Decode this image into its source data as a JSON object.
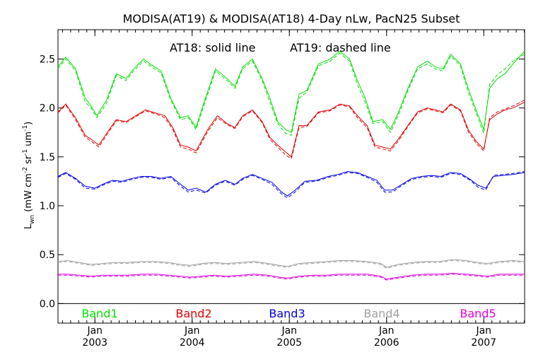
{
  "chart_data": {
    "type": "line",
    "title": "MODISA(AT19) & MODISA(AT18) 4-Day nLw, PacN25 Subset",
    "ylabel": {
      "main": "L",
      "sub": "wn",
      "units_a": " (mW cm",
      "sup1": "-2",
      "units_b": " sr",
      "sup2": "-1",
      "units_c": " um",
      "sup3": "-1",
      "units_d": ")"
    },
    "annotation_at18": "AT18: solid line",
    "annotation_at19": "AT19: dashed line",
    "ylim": [
      -0.2,
      2.8
    ],
    "xlim": [
      2002.62,
      2007.42
    ],
    "y_ticks": [
      {
        "value": 0.0,
        "label": "0.0"
      },
      {
        "value": 0.5,
        "label": "0.5"
      },
      {
        "value": 1.0,
        "label": "1.0"
      },
      {
        "value": 1.5,
        "label": "1.5"
      },
      {
        "value": 2.0,
        "label": "2.0"
      },
      {
        "value": 2.5,
        "label": "2.5"
      }
    ],
    "x_ticks": [
      {
        "value": 2003.0,
        "month": "Jan",
        "year": "2003"
      },
      {
        "value": 2004.0,
        "month": "Jan",
        "year": "2004"
      },
      {
        "value": 2005.0,
        "month": "Jan",
        "year": "2005"
      },
      {
        "value": 2006.0,
        "month": "Jan",
        "year": "2006"
      },
      {
        "value": 2007.0,
        "month": "Jan",
        "year": "2007"
      }
    ],
    "zero_line": 0.0,
    "series": [
      {
        "name": "Band1",
        "color": "#00e000",
        "x": [
          2002.62,
          2002.7,
          2002.8,
          2002.9,
          2002.96,
          2003.02,
          2003.12,
          2003.22,
          2003.32,
          2003.4,
          2003.5,
          2003.58,
          2003.68,
          2003.78,
          2003.88,
          2003.96,
          2004.04,
          2004.12,
          2004.24,
          2004.36,
          2004.44,
          2004.52,
          2004.62,
          2004.72,
          2004.8,
          2004.88,
          2004.96,
          2005.02,
          2005.1,
          2005.18,
          2005.3,
          2005.42,
          2005.52,
          2005.62,
          2005.7,
          2005.78,
          2005.86,
          2005.96,
          2006.04,
          2006.12,
          2006.22,
          2006.32,
          2006.42,
          2006.5,
          2006.58,
          2006.66,
          2006.76,
          2006.84,
          2006.92,
          2007.0,
          2007.06,
          2007.14,
          2007.22,
          2007.3,
          2007.42
        ],
        "at18": [
          2.42,
          2.52,
          2.4,
          2.1,
          2.02,
          1.92,
          2.08,
          2.35,
          2.3,
          2.4,
          2.5,
          2.44,
          2.38,
          2.1,
          1.9,
          1.92,
          1.8,
          2.05,
          2.4,
          2.3,
          2.22,
          2.42,
          2.5,
          2.3,
          2.1,
          1.86,
          1.78,
          1.75,
          2.14,
          2.18,
          2.45,
          2.5,
          2.58,
          2.5,
          2.28,
          2.1,
          1.86,
          1.88,
          1.78,
          1.95,
          2.2,
          2.42,
          2.48,
          2.42,
          2.4,
          2.55,
          2.45,
          2.2,
          1.98,
          1.78,
          2.2,
          2.3,
          2.35,
          2.45,
          2.58
        ],
        "at19": [
          2.4,
          2.5,
          2.38,
          2.06,
          2.0,
          1.9,
          2.05,
          2.33,
          2.28,
          2.38,
          2.48,
          2.42,
          2.36,
          2.08,
          1.88,
          1.9,
          1.78,
          2.02,
          2.38,
          2.28,
          2.2,
          2.4,
          2.48,
          2.28,
          2.06,
          1.84,
          1.74,
          1.72,
          2.1,
          2.16,
          2.43,
          2.48,
          2.56,
          2.48,
          2.24,
          2.06,
          1.84,
          1.86,
          1.75,
          1.92,
          2.18,
          2.4,
          2.45,
          2.4,
          2.38,
          2.53,
          2.43,
          2.16,
          1.95,
          1.74,
          2.24,
          2.34,
          2.4,
          2.48,
          2.55
        ]
      },
      {
        "name": "Band2",
        "color": "#e00000",
        "x": [
          2002.62,
          2002.7,
          2002.8,
          2002.9,
          2002.96,
          2003.04,
          2003.12,
          2003.22,
          2003.32,
          2003.42,
          2003.52,
          2003.62,
          2003.72,
          2003.8,
          2003.88,
          2003.96,
          2004.04,
          2004.16,
          2004.26,
          2004.36,
          2004.44,
          2004.52,
          2004.62,
          2004.72,
          2004.8,
          2004.88,
          2004.96,
          2005.02,
          2005.1,
          2005.18,
          2005.3,
          2005.42,
          2005.52,
          2005.62,
          2005.7,
          2005.8,
          2005.88,
          2005.96,
          2006.04,
          2006.12,
          2006.22,
          2006.32,
          2006.42,
          2006.5,
          2006.58,
          2006.66,
          2006.76,
          2006.84,
          2006.92,
          2007.0,
          2007.06,
          2007.14,
          2007.22,
          2007.3,
          2007.42
        ],
        "at18": [
          1.96,
          2.04,
          1.9,
          1.72,
          1.68,
          1.62,
          1.74,
          1.88,
          1.86,
          1.92,
          1.98,
          1.95,
          1.92,
          1.8,
          1.62,
          1.6,
          1.56,
          1.78,
          1.92,
          1.84,
          1.8,
          1.92,
          1.98,
          1.86,
          1.7,
          1.62,
          1.55,
          1.5,
          1.82,
          1.82,
          1.96,
          1.98,
          2.04,
          2.02,
          1.92,
          1.82,
          1.62,
          1.6,
          1.58,
          1.68,
          1.82,
          1.96,
          2.0,
          1.98,
          1.96,
          2.04,
          1.98,
          1.78,
          1.66,
          1.58,
          1.88,
          1.94,
          1.98,
          2.0,
          2.06
        ],
        "at19": [
          1.95,
          2.03,
          1.88,
          1.7,
          1.66,
          1.6,
          1.72,
          1.87,
          1.85,
          1.91,
          1.97,
          1.94,
          1.9,
          1.78,
          1.6,
          1.58,
          1.54,
          1.76,
          1.9,
          1.83,
          1.79,
          1.91,
          1.97,
          1.85,
          1.68,
          1.6,
          1.52,
          1.48,
          1.8,
          1.81,
          1.95,
          1.97,
          2.03,
          2.01,
          1.9,
          1.8,
          1.6,
          1.58,
          1.56,
          1.66,
          1.81,
          1.95,
          1.99,
          1.97,
          1.95,
          2.03,
          1.97,
          1.76,
          1.64,
          1.56,
          1.9,
          1.96,
          1.99,
          2.02,
          2.08
        ]
      },
      {
        "name": "Band3",
        "color": "#0000e0",
        "x": [
          2002.62,
          2002.7,
          2002.8,
          2002.9,
          2003.0,
          2003.08,
          2003.18,
          2003.28,
          2003.38,
          2003.48,
          2003.58,
          2003.68,
          2003.78,
          2003.88,
          2003.96,
          2004.04,
          2004.14,
          2004.24,
          2004.34,
          2004.44,
          2004.52,
          2004.62,
          2004.72,
          2004.82,
          2004.92,
          2004.98,
          2005.06,
          2005.16,
          2005.28,
          2005.4,
          2005.5,
          2005.6,
          2005.7,
          2005.8,
          2005.9,
          2005.98,
          2006.06,
          2006.16,
          2006.26,
          2006.36,
          2006.46,
          2006.56,
          2006.66,
          2006.76,
          2006.86,
          2006.94,
          2007.02,
          2007.1,
          2007.2,
          2007.3,
          2007.42
        ],
        "at18": [
          1.3,
          1.34,
          1.28,
          1.2,
          1.18,
          1.22,
          1.26,
          1.25,
          1.28,
          1.3,
          1.3,
          1.28,
          1.3,
          1.22,
          1.16,
          1.18,
          1.14,
          1.22,
          1.26,
          1.22,
          1.28,
          1.32,
          1.28,
          1.24,
          1.14,
          1.1,
          1.16,
          1.25,
          1.26,
          1.3,
          1.32,
          1.35,
          1.34,
          1.3,
          1.26,
          1.16,
          1.16,
          1.22,
          1.28,
          1.3,
          1.31,
          1.3,
          1.34,
          1.33,
          1.27,
          1.21,
          1.18,
          1.3,
          1.31,
          1.32,
          1.34
        ],
        "at19": [
          1.29,
          1.33,
          1.27,
          1.18,
          1.17,
          1.21,
          1.25,
          1.24,
          1.27,
          1.29,
          1.29,
          1.27,
          1.29,
          1.2,
          1.14,
          1.16,
          1.13,
          1.21,
          1.25,
          1.21,
          1.27,
          1.31,
          1.27,
          1.22,
          1.12,
          1.08,
          1.14,
          1.24,
          1.25,
          1.29,
          1.31,
          1.34,
          1.33,
          1.29,
          1.24,
          1.14,
          1.14,
          1.21,
          1.27,
          1.29,
          1.3,
          1.29,
          1.33,
          1.32,
          1.26,
          1.19,
          1.16,
          1.31,
          1.32,
          1.33,
          1.35
        ]
      },
      {
        "name": "Band4",
        "color": "#a0a0a0",
        "x": [
          2002.62,
          2002.72,
          2002.84,
          2002.96,
          2003.08,
          2003.2,
          2003.34,
          2003.48,
          2003.62,
          2003.76,
          2003.88,
          2003.98,
          2004.1,
          2004.22,
          2004.36,
          2004.5,
          2004.64,
          2004.78,
          2004.9,
          2004.98,
          2005.1,
          2005.24,
          2005.38,
          2005.52,
          2005.66,
          2005.8,
          2005.94,
          2006.0,
          2006.12,
          2006.26,
          2006.4,
          2006.54,
          2006.68,
          2006.82,
          2006.94,
          2007.04,
          2007.16,
          2007.3,
          2007.42
        ],
        "at18": [
          0.43,
          0.44,
          0.42,
          0.4,
          0.41,
          0.42,
          0.42,
          0.43,
          0.43,
          0.42,
          0.4,
          0.39,
          0.41,
          0.42,
          0.41,
          0.42,
          0.43,
          0.41,
          0.39,
          0.38,
          0.41,
          0.42,
          0.43,
          0.44,
          0.44,
          0.43,
          0.41,
          0.37,
          0.4,
          0.42,
          0.43,
          0.43,
          0.45,
          0.44,
          0.42,
          0.41,
          0.43,
          0.44,
          0.43
        ],
        "at19": [
          0.42,
          0.43,
          0.41,
          0.39,
          0.4,
          0.41,
          0.41,
          0.42,
          0.42,
          0.41,
          0.39,
          0.38,
          0.4,
          0.41,
          0.4,
          0.41,
          0.42,
          0.4,
          0.38,
          0.37,
          0.4,
          0.41,
          0.42,
          0.43,
          0.43,
          0.42,
          0.4,
          0.36,
          0.39,
          0.41,
          0.42,
          0.42,
          0.44,
          0.43,
          0.41,
          0.4,
          0.42,
          0.43,
          0.42
        ]
      },
      {
        "name": "Band5",
        "color": "#e000e0",
        "x": [
          2002.62,
          2002.72,
          2002.84,
          2002.96,
          2003.08,
          2003.2,
          2003.34,
          2003.48,
          2003.62,
          2003.76,
          2003.88,
          2003.98,
          2004.1,
          2004.22,
          2004.36,
          2004.5,
          2004.64,
          2004.78,
          2004.9,
          2004.98,
          2005.1,
          2005.24,
          2005.38,
          2005.52,
          2005.66,
          2005.8,
          2005.94,
          2006.0,
          2006.12,
          2006.26,
          2006.4,
          2006.54,
          2006.68,
          2006.82,
          2006.94,
          2007.04,
          2007.16,
          2007.3,
          2007.42
        ],
        "at18": [
          0.3,
          0.3,
          0.29,
          0.28,
          0.29,
          0.29,
          0.29,
          0.3,
          0.3,
          0.29,
          0.28,
          0.27,
          0.28,
          0.29,
          0.28,
          0.29,
          0.3,
          0.29,
          0.27,
          0.26,
          0.28,
          0.29,
          0.29,
          0.3,
          0.3,
          0.3,
          0.28,
          0.25,
          0.27,
          0.29,
          0.3,
          0.3,
          0.31,
          0.3,
          0.29,
          0.28,
          0.3,
          0.3,
          0.3
        ],
        "at19": [
          0.29,
          0.29,
          0.28,
          0.27,
          0.28,
          0.28,
          0.28,
          0.29,
          0.29,
          0.28,
          0.27,
          0.26,
          0.27,
          0.28,
          0.27,
          0.28,
          0.29,
          0.28,
          0.26,
          0.25,
          0.27,
          0.28,
          0.28,
          0.29,
          0.29,
          0.29,
          0.27,
          0.24,
          0.26,
          0.28,
          0.29,
          0.29,
          0.3,
          0.29,
          0.28,
          0.27,
          0.29,
          0.29,
          0.29
        ]
      }
    ],
    "legend": [
      {
        "label": "Band1",
        "color": "#00e000"
      },
      {
        "label": "Band2",
        "color": "#e00000"
      },
      {
        "label": "Band3",
        "color": "#0000e0"
      },
      {
        "label": "Band4",
        "color": "#a0a0a0"
      },
      {
        "label": "Band5",
        "color": "#e000e0"
      }
    ]
  }
}
